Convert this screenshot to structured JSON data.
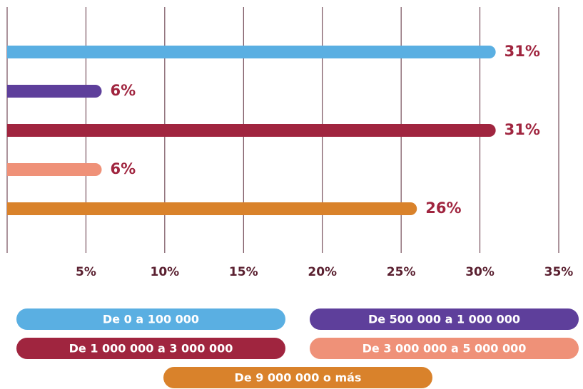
{
  "chart_data": {
    "type": "bar",
    "orientation": "horizontal",
    "categories": [
      "De 0 a 100 000",
      "De 500 000 a 1 000 000",
      "De 1 000 000 a 3 000 000",
      "De 3 000 000 a 5 000 000",
      "De 9 000 000 o más"
    ],
    "values": [
      31,
      6,
      31,
      6,
      26
    ],
    "value_labels": [
      "31%",
      "6%",
      "31%",
      "6%",
      "26%"
    ],
    "colors": [
      "#5aafe2",
      "#5e3f9b",
      "#a0253f",
      "#ef9178",
      "#d9822b"
    ],
    "xlim": [
      0,
      35
    ],
    "xticks": [
      {
        "value": 5,
        "label": "5%"
      },
      {
        "value": 10,
        "label": "10%"
      },
      {
        "value": 15,
        "label": "15%"
      },
      {
        "value": 20,
        "label": "20%"
      },
      {
        "value": 25,
        "label": "25%"
      },
      {
        "value": 30,
        "label": "30%"
      },
      {
        "value": 35,
        "label": "35%"
      }
    ],
    "grid": true
  }
}
